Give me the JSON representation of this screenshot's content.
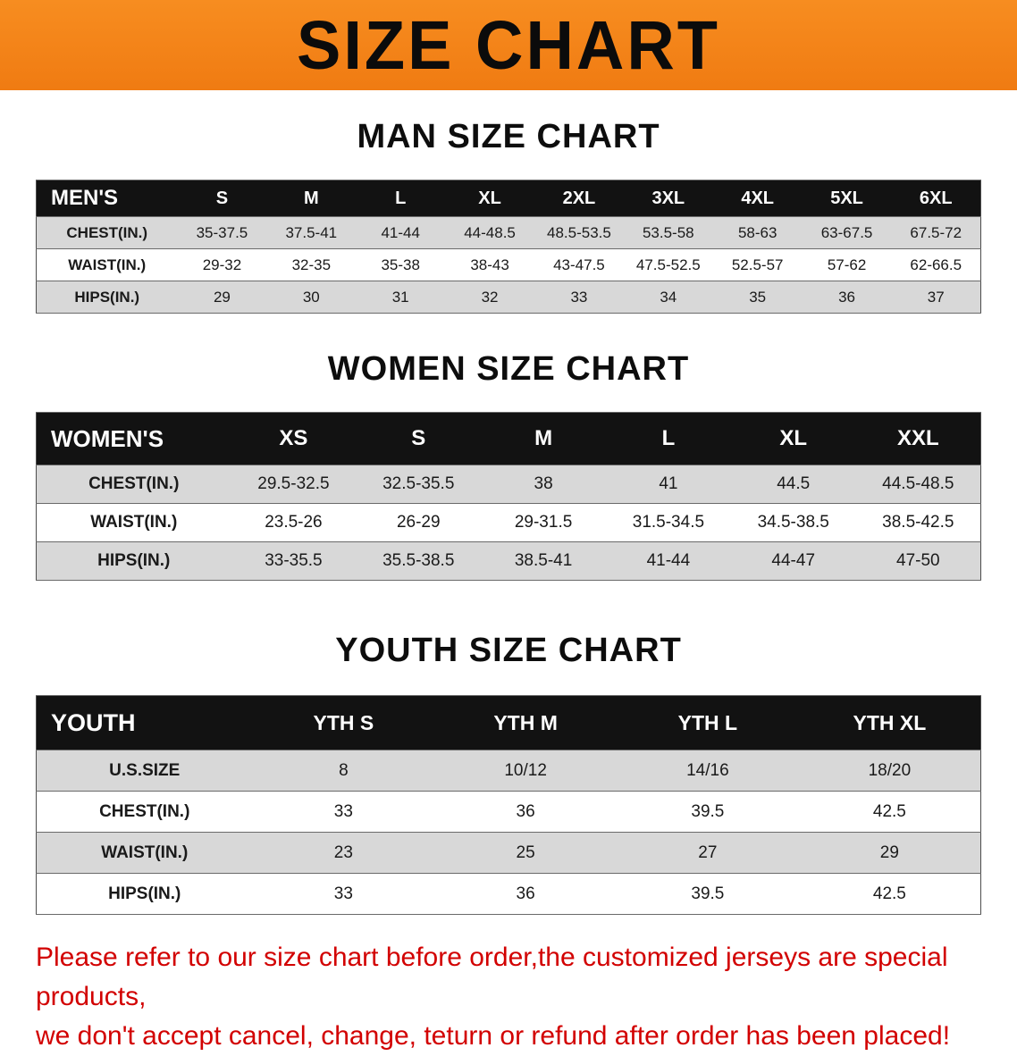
{
  "banner": {
    "title": "SIZE CHART"
  },
  "headings": {
    "men": "MAN SIZE CHART",
    "women": "WOMEN SIZE CHART",
    "youth": "YOUTH SIZE CHART"
  },
  "men_table": {
    "header": [
      "MEN'S",
      "S",
      "M",
      "L",
      "XL",
      "2XL",
      "3XL",
      "4XL",
      "5XL",
      "6XL"
    ],
    "rows": [
      [
        "CHEST(IN.)",
        "35-37.5",
        "37.5-41",
        "41-44",
        "44-48.5",
        "48.5-53.5",
        "53.5-58",
        "58-63",
        "63-67.5",
        "67.5-72"
      ],
      [
        "WAIST(IN.)",
        "29-32",
        "32-35",
        "35-38",
        "38-43",
        "43-47.5",
        "47.5-52.5",
        "52.5-57",
        "57-62",
        "62-66.5"
      ],
      [
        "HIPS(IN.)",
        "29",
        "30",
        "31",
        "32",
        "33",
        "34",
        "35",
        "36",
        "37"
      ]
    ]
  },
  "women_table": {
    "header": [
      "WOMEN'S",
      "XS",
      "S",
      "M",
      "L",
      "XL",
      "XXL"
    ],
    "rows": [
      [
        "CHEST(IN.)",
        "29.5-32.5",
        "32.5-35.5",
        "38",
        "41",
        "44.5",
        "44.5-48.5"
      ],
      [
        "WAIST(IN.)",
        "23.5-26",
        "26-29",
        "29-31.5",
        "31.5-34.5",
        "34.5-38.5",
        "38.5-42.5"
      ],
      [
        "HIPS(IN.)",
        "33-35.5",
        "35.5-38.5",
        "38.5-41",
        "41-44",
        "44-47",
        "47-50"
      ]
    ]
  },
  "youth_table": {
    "header": [
      "YOUTH",
      "YTH S",
      "YTH M",
      "YTH L",
      "YTH XL"
    ],
    "rows": [
      [
        "U.S.SIZE",
        "8",
        "10/12",
        "14/16",
        "18/20"
      ],
      [
        "CHEST(IN.)",
        "33",
        "36",
        "39.5",
        "42.5"
      ],
      [
        "WAIST(IN.)",
        "23",
        "25",
        "27",
        "29"
      ],
      [
        "HIPS(IN.)",
        "33",
        "36",
        "39.5",
        "42.5"
      ]
    ]
  },
  "footer": {
    "line1": "Please refer to our size chart before order,the customized jerseys are special products,",
    "line2": "we don't accept cancel, change, teturn or refund after order has been placed!"
  },
  "colors": {
    "banner_orange": "#F6861F",
    "table_header_black": "#121212",
    "row_gray": "#d8d8d8",
    "notice_red": "#d20000"
  }
}
